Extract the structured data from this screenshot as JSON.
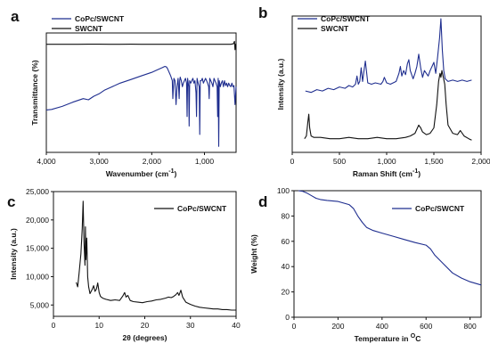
{
  "colors": {
    "blue": "#1f2e8f",
    "black": "#111111"
  },
  "chart_data": [
    {
      "panel": "a",
      "type": "line",
      "xlabel": "Wavenumber (cm",
      "xlabel_sup": "-1",
      "xlabel_tail": ")",
      "ylabel": "Transmittance (%)",
      "x_reversed": true,
      "xlim": [
        4000,
        400
      ],
      "xticks": [
        {
          "v": 4000,
          "label": "4,000"
        },
        {
          "v": 3000,
          "label": "3,000"
        },
        {
          "v": 2000,
          "label": "2,000"
        },
        {
          "v": 1000,
          "label": "1,000"
        }
      ],
      "y_ticks_shown": false,
      "legend_position": "top-left",
      "series": [
        {
          "name": "CoPc/SWCNT",
          "color": "blue",
          "x": [
            4000,
            3900,
            3700,
            3500,
            3300,
            3200,
            3100,
            3000,
            2900,
            2800,
            2600,
            2400,
            2200,
            2000,
            1900,
            1800,
            1750,
            1720,
            1700,
            1660,
            1640,
            1610,
            1600,
            1580,
            1560,
            1540,
            1520,
            1500,
            1480,
            1470,
            1460,
            1440,
            1420,
            1400,
            1380,
            1360,
            1340,
            1330,
            1320,
            1300,
            1290,
            1280,
            1260,
            1240,
            1220,
            1200,
            1180,
            1160,
            1150,
            1140,
            1120,
            1100,
            1090,
            1080,
            1060,
            1040,
            1020,
            1000,
            980,
            960,
            940,
            920,
            910,
            900,
            880,
            860,
            840,
            820,
            800,
            780,
            760,
            750,
            740,
            730,
            720,
            700,
            680,
            660,
            640,
            620,
            600,
            580,
            560,
            540,
            520,
            500,
            480,
            460,
            440,
            420,
            400
          ],
          "y": [
            0.355,
            0.36,
            0.385,
            0.42,
            0.45,
            0.44,
            0.47,
            0.49,
            0.52,
            0.54,
            0.58,
            0.61,
            0.64,
            0.67,
            0.69,
            0.71,
            0.72,
            0.715,
            0.7,
            0.66,
            0.64,
            0.6,
            0.45,
            0.62,
            0.6,
            0.4,
            0.55,
            0.62,
            0.45,
            0.6,
            0.63,
            0.6,
            0.55,
            0.58,
            0.6,
            0.62,
            0.58,
            0.3,
            0.62,
            0.55,
            0.22,
            0.6,
            0.58,
            0.6,
            0.62,
            0.58,
            0.6,
            0.5,
            0.3,
            0.62,
            0.58,
            0.55,
            0.15,
            0.6,
            0.6,
            0.62,
            0.58,
            0.6,
            0.62,
            0.6,
            0.58,
            0.55,
            0.45,
            0.62,
            0.6,
            0.58,
            0.55,
            0.62,
            0.6,
            0.58,
            0.55,
            0.3,
            0.62,
            0.05,
            0.6,
            0.55,
            0.58,
            0.6,
            0.55,
            0.6,
            0.56,
            0.58,
            0.55,
            0.58,
            0.56,
            0.55,
            0.58,
            0.55,
            0.56,
            0.4,
            0.55
          ]
        },
        {
          "name": "SWCNT",
          "color": "black",
          "x": [
            4000,
            3800,
            3600,
            3400,
            3200,
            3000,
            2800,
            2600,
            2400,
            2200,
            2000,
            1800,
            1600,
            1400,
            1200,
            1000,
            800,
            600,
            500,
            450,
            430,
            420,
            410,
            400
          ],
          "y": [
            0.905,
            0.905,
            0.905,
            0.905,
            0.906,
            0.906,
            0.905,
            0.905,
            0.906,
            0.905,
            0.905,
            0.905,
            0.905,
            0.905,
            0.905,
            0.905,
            0.905,
            0.905,
            0.905,
            0.91,
            0.93,
            0.86,
            0.905,
            0.9
          ]
        }
      ]
    },
    {
      "panel": "b",
      "type": "line",
      "xlabel": "Raman Shift (cm",
      "xlabel_sup": "-1",
      "xlabel_tail": ")",
      "ylabel": "Intensity (a.u.)",
      "xlim": [
        0,
        2000
      ],
      "xticks": [
        {
          "v": 0,
          "label": "0"
        },
        {
          "v": 500,
          "label": "500"
        },
        {
          "v": 1000,
          "label": "1,000"
        },
        {
          "v": 1500,
          "label": "1,500"
        },
        {
          "v": 2000,
          "label": "2,000"
        }
      ],
      "y_ticks_shown": false,
      "legend_position": "top-left",
      "series": [
        {
          "name": "CoPc/SWCNT",
          "color": "blue",
          "x": [
            140,
            200,
            260,
            320,
            380,
            440,
            500,
            560,
            600,
            640,
            670,
            686,
            700,
            715,
            730,
            745,
            760,
            775,
            800,
            840,
            880,
            940,
            960,
            975,
            1000,
            1040,
            1100,
            1130,
            1145,
            1160,
            1180,
            1200,
            1220,
            1235,
            1250,
            1280,
            1300,
            1320,
            1340,
            1360,
            1380,
            1400,
            1420,
            1440,
            1460,
            1480,
            1500,
            1520,
            1540,
            1560,
            1575,
            1590,
            1605,
            1620,
            1650,
            1700,
            1750,
            1800,
            1850,
            1900
          ],
          "y": [
            0.45,
            0.44,
            0.46,
            0.45,
            0.47,
            0.46,
            0.48,
            0.47,
            0.49,
            0.48,
            0.5,
            0.56,
            0.5,
            0.52,
            0.62,
            0.52,
            0.6,
            0.67,
            0.51,
            0.5,
            0.51,
            0.5,
            0.52,
            0.55,
            0.51,
            0.5,
            0.52,
            0.58,
            0.63,
            0.56,
            0.6,
            0.57,
            0.65,
            0.68,
            0.6,
            0.54,
            0.58,
            0.63,
            0.72,
            0.62,
            0.55,
            0.6,
            0.58,
            0.56,
            0.6,
            0.63,
            0.66,
            0.58,
            0.7,
            0.84,
            0.98,
            0.75,
            0.6,
            0.54,
            0.52,
            0.53,
            0.52,
            0.53,
            0.52,
            0.53
          ]
        },
        {
          "name": "SWCNT",
          "color": "black",
          "x": [
            130,
            150,
            165,
            175,
            185,
            200,
            230,
            300,
            400,
            500,
            600,
            700,
            800,
            900,
            1000,
            1100,
            1200,
            1250,
            1300,
            1320,
            1340,
            1360,
            1380,
            1420,
            1460,
            1500,
            1530,
            1550,
            1565,
            1575,
            1585,
            1600,
            1615,
            1630,
            1650,
            1700,
            1750,
            1780,
            1820,
            1870,
            1900
          ],
          "y": [
            0.1,
            0.12,
            0.22,
            0.28,
            0.18,
            0.12,
            0.11,
            0.11,
            0.1,
            0.1,
            0.11,
            0.1,
            0.1,
            0.11,
            0.1,
            0.1,
            0.11,
            0.12,
            0.14,
            0.17,
            0.2,
            0.18,
            0.15,
            0.13,
            0.14,
            0.18,
            0.35,
            0.52,
            0.58,
            0.55,
            0.6,
            0.55,
            0.5,
            0.35,
            0.2,
            0.14,
            0.13,
            0.16,
            0.12,
            0.1,
            0.09
          ]
        }
      ]
    },
    {
      "panel": "c",
      "type": "line",
      "xlabel": "2θ (degrees)",
      "ylabel": "Intensity (a.u.)",
      "xlim": [
        0,
        40
      ],
      "ylim": [
        3000,
        25000
      ],
      "xticks": [
        {
          "v": 0,
          "label": "0"
        },
        {
          "v": 10,
          "label": "10"
        },
        {
          "v": 20,
          "label": "20"
        },
        {
          "v": 30,
          "label": "30"
        },
        {
          "v": 40,
          "label": "40"
        }
      ],
      "yticks": [
        {
          "v": 5000,
          "label": "5,000"
        },
        {
          "v": 10000,
          "label": "10,000"
        },
        {
          "v": 15000,
          "label": "15,000"
        },
        {
          "v": 20000,
          "label": "20,000"
        },
        {
          "v": 25000,
          "label": "25,000"
        }
      ],
      "legend_position": "top-right",
      "series": [
        {
          "name": "CoPc/SWCNT",
          "color": "black",
          "x": [
            5,
            5.3,
            5.6,
            6.0,
            6.3,
            6.5,
            6.7,
            6.9,
            7.0,
            7.1,
            7.3,
            7.5,
            7.7,
            8.0,
            8.5,
            8.8,
            9.1,
            9.4,
            9.7,
            10.0,
            10.3,
            10.8,
            11.5,
            12.5,
            13.5,
            14.5,
            15.2,
            15.6,
            15.9,
            16.3,
            16.8,
            17.5,
            18.5,
            19.5,
            20.5,
            21.5,
            22.5,
            23.5,
            24.5,
            25.2,
            25.8,
            26.3,
            26.8,
            27.2,
            27.5,
            27.9,
            28.3,
            29,
            30,
            31,
            32,
            33,
            34,
            35,
            36,
            37,
            38,
            39,
            40
          ],
          "y": [
            9000,
            8200,
            10500,
            14000,
            18500,
            23300,
            16000,
            12000,
            18800,
            13000,
            16800,
            10000,
            8200,
            7000,
            7800,
            8400,
            7400,
            7800,
            8900,
            7200,
            6500,
            6200,
            6000,
            5800,
            5900,
            5800,
            6600,
            7200,
            6400,
            6700,
            5800,
            5600,
            5500,
            5400,
            5600,
            5700,
            5900,
            6000,
            6200,
            6400,
            6300,
            6500,
            6800,
            7200,
            6700,
            7600,
            6400,
            5500,
            5100,
            4800,
            4600,
            4500,
            4400,
            4300,
            4300,
            4200,
            4200,
            4100,
            4100
          ]
        }
      ]
    },
    {
      "panel": "d",
      "type": "line",
      "xlabel": "Temperature in ",
      "xlabel_sup": "O",
      "xlabel_tail": "C",
      "ylabel": "Weight (%)",
      "xlim": [
        0,
        850
      ],
      "ylim": [
        0,
        100
      ],
      "xticks": [
        {
          "v": 0,
          "label": "0"
        },
        {
          "v": 200,
          "label": "200"
        },
        {
          "v": 400,
          "label": "400"
        },
        {
          "v": 600,
          "label": "600"
        },
        {
          "v": 800,
          "label": "800"
        }
      ],
      "yticks": [
        {
          "v": 0,
          "label": "0"
        },
        {
          "v": 20,
          "label": "20"
        },
        {
          "v": 40,
          "label": "40"
        },
        {
          "v": 60,
          "label": "60"
        },
        {
          "v": 80,
          "label": "80"
        },
        {
          "v": 100,
          "label": "100"
        }
      ],
      "legend_position": "top-right",
      "series": [
        {
          "name": "CoPc/SWCNT",
          "color": "blue",
          "x": [
            20,
            40,
            60,
            80,
            100,
            120,
            150,
            200,
            250,
            270,
            290,
            310,
            330,
            360,
            400,
            450,
            500,
            550,
            600,
            620,
            640,
            680,
            720,
            760,
            800,
            850
          ],
          "y": [
            100,
            99.5,
            98,
            96,
            94,
            93,
            92.3,
            91.5,
            89,
            86,
            80,
            75,
            71,
            68.5,
            66.5,
            64,
            61.5,
            59,
            57,
            54,
            49,
            42,
            35,
            31,
            28,
            25.5
          ]
        }
      ]
    }
  ]
}
